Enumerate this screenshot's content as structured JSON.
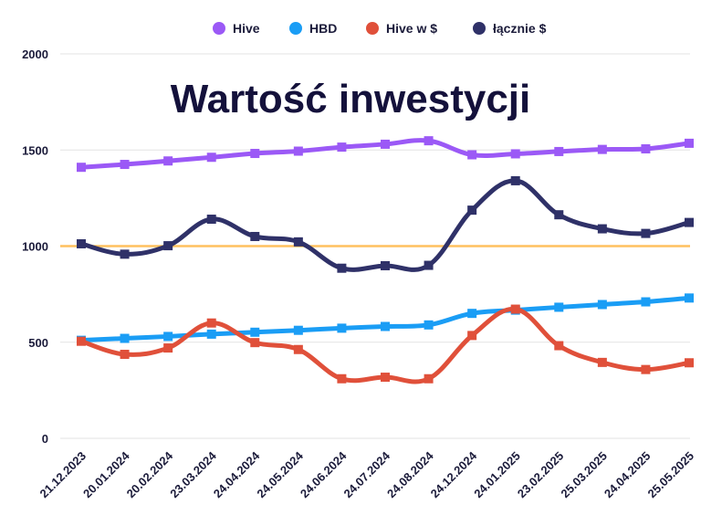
{
  "chart_data": {
    "type": "line",
    "title": "Wartość inwestycji",
    "xlabel": "",
    "ylabel": "",
    "ylim": [
      0,
      2000
    ],
    "yticks": [
      0,
      500,
      1000,
      1500,
      2000
    ],
    "grid": true,
    "legend_position": "top-center",
    "categories": [
      "21.12.2023",
      "20.01.2024",
      "20.02.2024",
      "23.03.2024",
      "24.04.2024",
      "24.05.2024",
      "24.06.2024",
      "24.07.2024",
      "24.08.2024",
      "24.12.2024",
      "24.01.2025",
      "23.02.2025",
      "25.03.2025",
      "24.04.2025",
      "25.05.2025"
    ],
    "series": [
      {
        "name": "Hive",
        "color": "#9b59f6",
        "values": [
          1410,
          1425,
          1443,
          1462,
          1482,
          1494,
          1515,
          1530,
          1548,
          1475,
          1480,
          1492,
          1503,
          1506,
          1535
        ]
      },
      {
        "name": "HBD",
        "color": "#1a9df5",
        "values": [
          510,
          520,
          530,
          542,
          552,
          562,
          573,
          582,
          590,
          650,
          667,
          682,
          696,
          710,
          730
        ]
      },
      {
        "name": "Hive w $",
        "color": "#e0503a",
        "values": [
          505,
          437,
          470,
          600,
          498,
          462,
          310,
          318,
          310,
          535,
          672,
          482,
          395,
          358,
          393
        ]
      },
      {
        "name": "łącznie $",
        "color": "#2f3168",
        "values": [
          1012,
          958,
          1002,
          1140,
          1050,
          1022,
          885,
          898,
          900,
          1187,
          1340,
          1163,
          1090,
          1066,
          1123
        ]
      }
    ],
    "reference_line": {
      "value": 1000,
      "color": "#ffc15e"
    }
  }
}
